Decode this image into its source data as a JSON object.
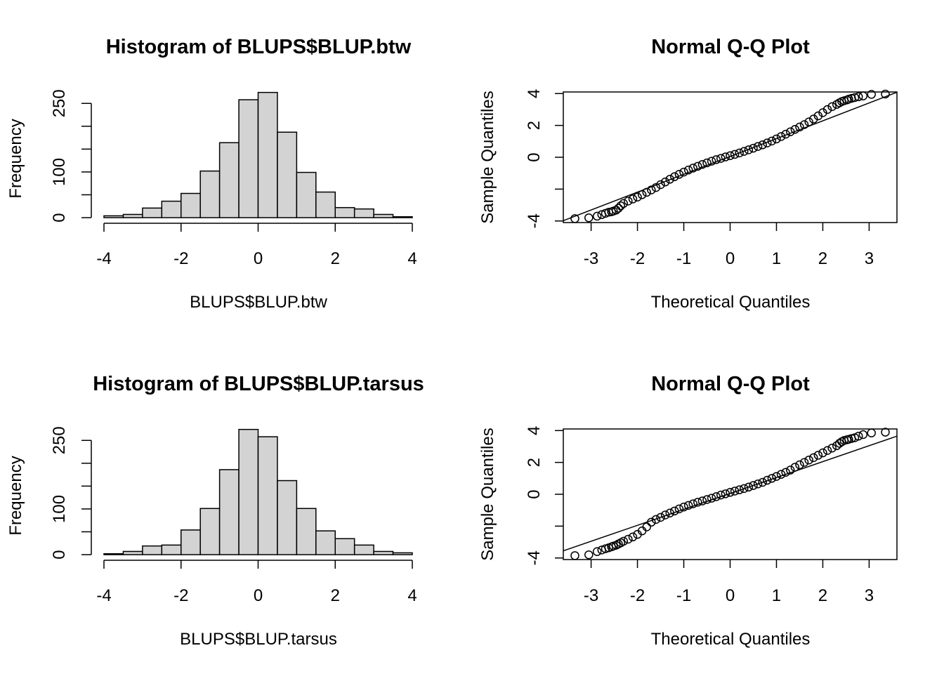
{
  "chart_data": [
    {
      "type": "bar",
      "title": "Histogram of BLUPS$BLUP.btw",
      "xlabel": "BLUPS$BLUP.btw",
      "ylabel": "Frequency",
      "bin_edges": [
        -4,
        -3.5,
        -3,
        -2.5,
        -2,
        -1.5,
        -1,
        -0.5,
        0,
        0.5,
        1,
        1.5,
        2,
        2.5,
        3,
        3.5,
        4
      ],
      "values": [
        4,
        7,
        21,
        36,
        53,
        102,
        164,
        258,
        274,
        187,
        99,
        56,
        22,
        19,
        7,
        2
      ],
      "xlim": [
        -4,
        4
      ],
      "ylim": [
        0,
        275
      ],
      "x_ticks": [
        "-4",
        "-2",
        "0",
        "2",
        "4"
      ],
      "y_ticks": [
        "0",
        "100",
        "250"
      ],
      "y_minor_ticks": [
        50,
        150,
        200
      ],
      "bar_color": "#d3d3d3"
    },
    {
      "type": "scatter",
      "title": "Normal Q-Q Plot",
      "xlabel": "Theoretical Quantiles",
      "ylabel": "Sample Quantiles",
      "x": [
        -3.35,
        -3.05,
        -2.87,
        -2.77,
        -2.69,
        -2.62,
        -2.56,
        -2.52,
        -2.46,
        -2.41,
        -2.36,
        -2.3,
        -2.2,
        -2.1,
        -2.0,
        -1.9,
        -1.8,
        -1.7,
        -1.6,
        -1.5,
        -1.4,
        -1.3,
        -1.2,
        -1.1,
        -1.0,
        -0.9,
        -0.8,
        -0.7,
        -0.6,
        -0.5,
        -0.4,
        -0.3,
        -0.2,
        -0.1,
        0.0,
        0.1,
        0.2,
        0.3,
        0.4,
        0.5,
        0.6,
        0.7,
        0.8,
        0.9,
        1.0,
        1.1,
        1.2,
        1.3,
        1.4,
        1.5,
        1.6,
        1.7,
        1.8,
        1.9,
        2.0,
        2.1,
        2.2,
        2.3,
        2.36,
        2.41,
        2.46,
        2.52,
        2.56,
        2.62,
        2.69,
        2.77,
        2.87,
        3.05,
        3.35
      ],
      "y": [
        -3.85,
        -3.8,
        -3.7,
        -3.6,
        -3.52,
        -3.45,
        -3.42,
        -3.38,
        -3.32,
        -3.2,
        -3.05,
        -2.9,
        -2.75,
        -2.62,
        -2.5,
        -2.35,
        -2.2,
        -2.05,
        -1.9,
        -1.72,
        -1.55,
        -1.38,
        -1.22,
        -1.07,
        -0.93,
        -0.8,
        -0.68,
        -0.57,
        -0.45,
        -0.35,
        -0.25,
        -0.15,
        -0.07,
        0.02,
        0.1,
        0.18,
        0.27,
        0.37,
        0.47,
        0.57,
        0.68,
        0.78,
        0.9,
        1.02,
        1.15,
        1.3,
        1.45,
        1.6,
        1.75,
        1.9,
        2.05,
        2.22,
        2.4,
        2.6,
        2.8,
        3.0,
        3.18,
        3.32,
        3.42,
        3.5,
        3.55,
        3.6,
        3.65,
        3.7,
        3.75,
        3.8,
        3.85,
        3.95,
        3.97
      ],
      "reference_line": {
        "intercept": 0.05,
        "slope": 1.12
      },
      "xlim": [
        -3.6,
        3.6
      ],
      "ylim": [
        -4.1,
        4.1
      ],
      "x_ticks": [
        "-3",
        "-2",
        "-1",
        "0",
        "1",
        "2",
        "3"
      ],
      "y_ticks": [
        "-4",
        "0",
        "2",
        "4"
      ],
      "y_unlabeled_ticks": [
        -2
      ]
    },
    {
      "type": "bar",
      "title": "Histogram of BLUPS$BLUP.tarsus",
      "xlabel": "BLUPS$BLUP.tarsus",
      "ylabel": "Frequency",
      "bin_edges": [
        -4,
        -3.5,
        -3,
        -2.5,
        -2,
        -1.5,
        -1,
        -0.5,
        0,
        0.5,
        1,
        1.5,
        2,
        2.5,
        3,
        3.5,
        4
      ],
      "values": [
        2,
        7,
        19,
        21,
        54,
        101,
        186,
        274,
        258,
        162,
        101,
        52,
        35,
        21,
        7,
        4
      ],
      "xlim": [
        -4,
        4
      ],
      "ylim": [
        0,
        275
      ],
      "x_ticks": [
        "-4",
        "-2",
        "0",
        "2",
        "4"
      ],
      "y_ticks": [
        "0",
        "100",
        "250"
      ],
      "y_minor_ticks": [
        50,
        150,
        200
      ],
      "bar_color": "#d3d3d3"
    },
    {
      "type": "scatter",
      "title": "Normal Q-Q Plot",
      "xlabel": "Theoretical Quantiles",
      "ylabel": "Sample Quantiles",
      "x": [
        -3.35,
        -3.05,
        -2.87,
        -2.77,
        -2.69,
        -2.62,
        -2.56,
        -2.52,
        -2.46,
        -2.41,
        -2.36,
        -2.3,
        -2.2,
        -2.1,
        -2.0,
        -1.9,
        -1.8,
        -1.7,
        -1.6,
        -1.5,
        -1.4,
        -1.3,
        -1.2,
        -1.1,
        -1.0,
        -0.9,
        -0.8,
        -0.7,
        -0.6,
        -0.5,
        -0.4,
        -0.3,
        -0.2,
        -0.1,
        0.0,
        0.1,
        0.2,
        0.3,
        0.4,
        0.5,
        0.6,
        0.7,
        0.8,
        0.9,
        1.0,
        1.1,
        1.2,
        1.3,
        1.4,
        1.5,
        1.6,
        1.7,
        1.8,
        1.9,
        2.0,
        2.1,
        2.2,
        2.3,
        2.36,
        2.41,
        2.46,
        2.52,
        2.56,
        2.62,
        2.69,
        2.77,
        2.87,
        3.05,
        3.35
      ],
      "y": [
        -3.85,
        -3.8,
        -3.6,
        -3.5,
        -3.42,
        -3.36,
        -3.3,
        -3.25,
        -3.2,
        -3.12,
        -3.05,
        -2.95,
        -2.82,
        -2.68,
        -2.52,
        -2.3,
        -2.05,
        -1.75,
        -1.58,
        -1.45,
        -1.3,
        -1.18,
        -1.05,
        -0.92,
        -0.8,
        -0.7,
        -0.6,
        -0.5,
        -0.42,
        -0.33,
        -0.25,
        -0.15,
        -0.05,
        0.03,
        0.12,
        0.2,
        0.28,
        0.36,
        0.45,
        0.55,
        0.65,
        0.75,
        0.88,
        1.0,
        1.12,
        1.25,
        1.38,
        1.52,
        1.7,
        1.85,
        2.0,
        2.15,
        2.3,
        2.45,
        2.6,
        2.75,
        2.9,
        3.05,
        3.2,
        3.3,
        3.38,
        3.42,
        3.45,
        3.5,
        3.55,
        3.65,
        3.75,
        3.85,
        3.9
      ],
      "reference_line": {
        "intercept": 0.05,
        "slope": 1.0
      },
      "xlim": [
        -3.6,
        3.6
      ],
      "ylim": [
        -4.1,
        4.1
      ],
      "x_ticks": [
        "-3",
        "-2",
        "-1",
        "0",
        "1",
        "2",
        "3"
      ],
      "y_ticks": [
        "-4",
        "0",
        "2",
        "4"
      ],
      "y_unlabeled_ticks": [
        -2
      ]
    }
  ]
}
